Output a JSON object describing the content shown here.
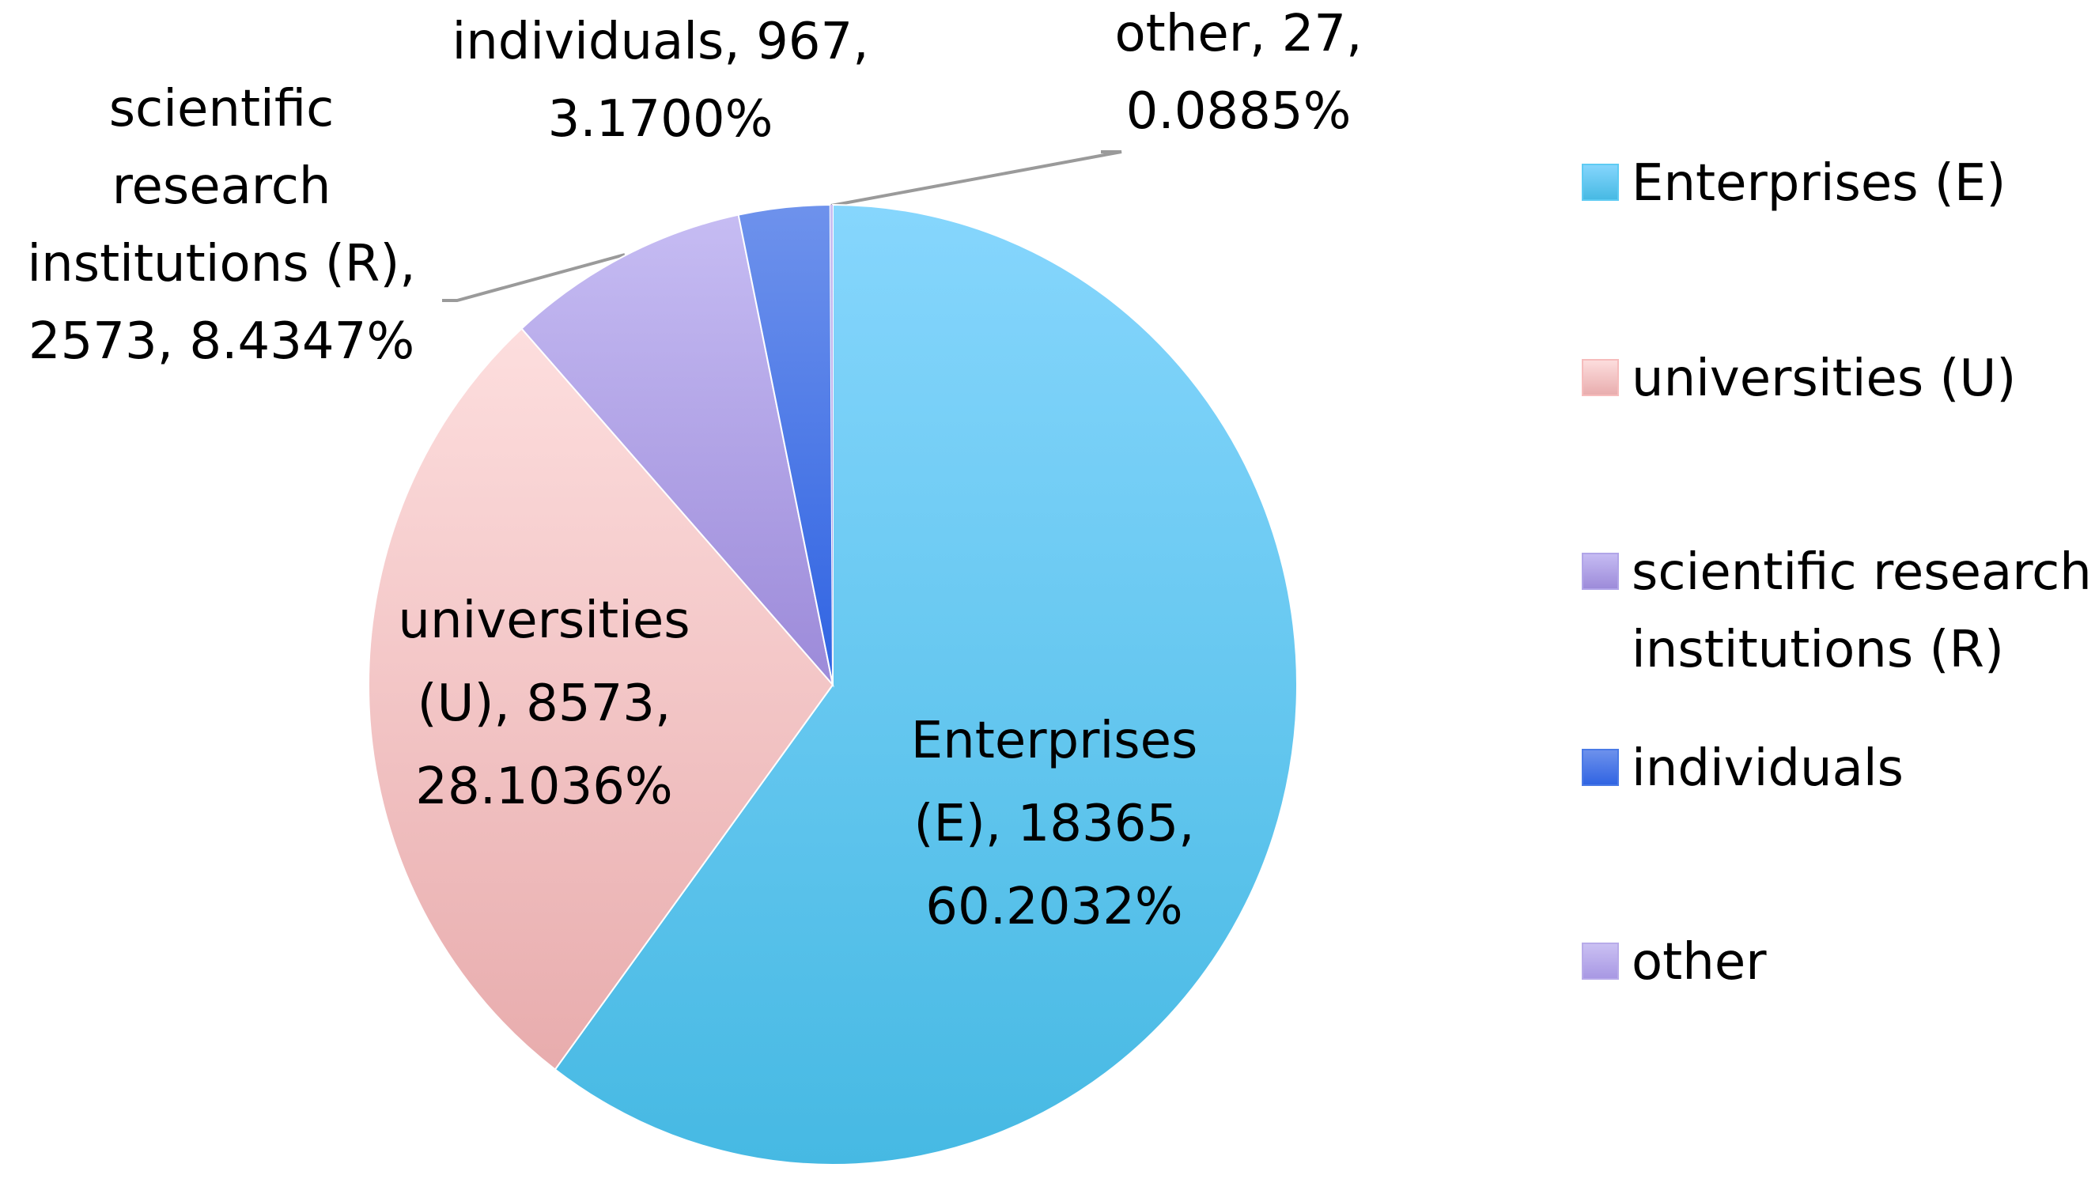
{
  "chart_data": {
    "type": "pie",
    "title": "",
    "legend_position": "right",
    "slices": [
      {
        "name": "Enterprises (E)",
        "value": 18365,
        "percent": "60.2032%",
        "label_lines": [
          "Enterprises",
          "(E), 18365,",
          "60.2032%"
        ],
        "color": "#5ecbf3",
        "legend_lines": [
          "Enterprises (E)"
        ]
      },
      {
        "name": "universities (U)",
        "value": 8573,
        "percent": "28.1036%",
        "label_lines": [
          "universities",
          "(U), 8573,",
          "28.1036%"
        ],
        "color": "#f6bcbc",
        "legend_lines": [
          "universities (U)"
        ]
      },
      {
        "name": "scientific research institutions (R)",
        "value": 2573,
        "percent": "8.4347%",
        "label_lines": [
          "scientific",
          "research",
          "institutions (R),",
          "2573, 8.4347%"
        ],
        "color": "#b1a5e8",
        "legend_lines": [
          "scientific research",
          "institutions (R)"
        ]
      },
      {
        "name": "individuals",
        "value": 967,
        "percent": "3.1700%",
        "label_lines": [
          "individuals, 967,",
          "3.1700%"
        ],
        "color": "#4a7ae6",
        "legend_lines": [
          "individuals"
        ]
      },
      {
        "name": "other",
        "value": 27,
        "percent": "0.0885%",
        "label_lines": [
          "other, 27,",
          "0.0885%"
        ],
        "color": "#b8abe9",
        "legend_lines": [
          "other"
        ]
      }
    ]
  }
}
